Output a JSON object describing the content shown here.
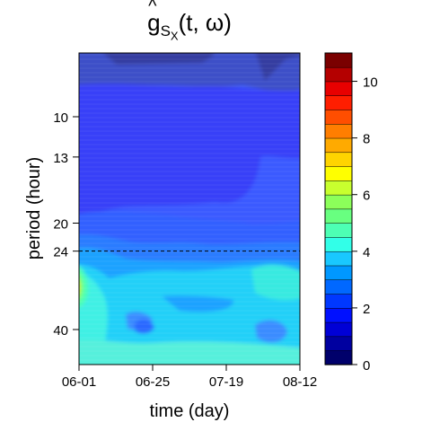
{
  "title": {
    "base": "g",
    "hat": "^",
    "sub": "S",
    "subsub": "X",
    "args": "(t, ω)"
  },
  "chart_data": {
    "type": "heatmap",
    "xlabel": "time (day)",
    "ylabel": "period (hour)",
    "x_ticks": [
      "06-01",
      "06-25",
      "07-19",
      "08-12"
    ],
    "y_ticks": [
      10,
      13,
      20,
      24,
      40
    ],
    "y_scale": "log",
    "reference_line_period": 24,
    "colorbar": {
      "min": 0,
      "max": 11,
      "ticks": [
        0,
        2,
        4,
        6,
        8,
        10
      ],
      "levels": [
        "#00006b",
        "#0000a0",
        "#0000d6",
        "#0010ff",
        "#0038ff",
        "#0068ff",
        "#0098ff",
        "#19c8ff",
        "#32ffe8",
        "#4dffb4",
        "#68ff80",
        "#8cff5a",
        "#c8ff2e",
        "#ffff00",
        "#ffd400",
        "#ffaa00",
        "#ff7e00",
        "#ff4e00",
        "#ff1e00",
        "#e80000",
        "#b40000",
        "#7a0000"
      ]
    },
    "grid": false,
    "legend": "right-colorbar"
  }
}
